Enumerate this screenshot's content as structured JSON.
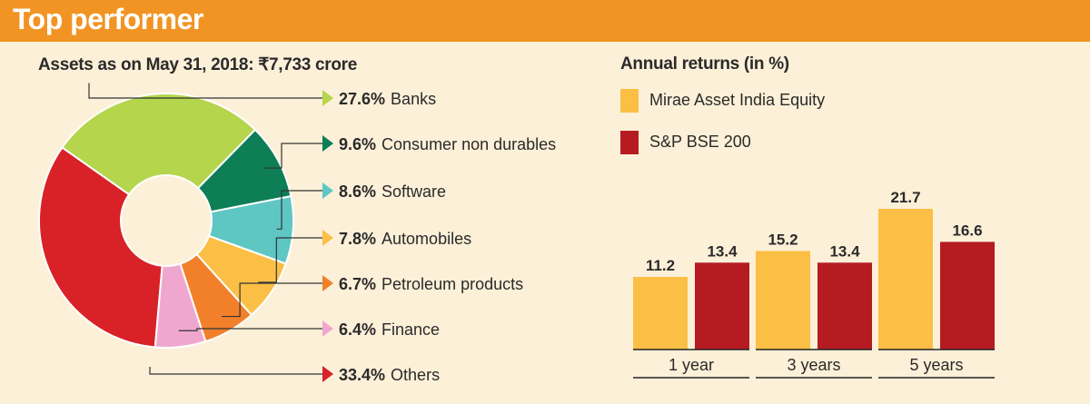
{
  "header": {
    "title": "Top performer"
  },
  "colors": {
    "header_bg": "#f19423",
    "page_bg": "#fdf0d8",
    "fund": "#fbbf45",
    "index": "#b61b22"
  },
  "chart_data": [
    {
      "type": "pie",
      "title": "Assets as on May 31, 2018: ₹7,733 crore",
      "slices": [
        {
          "label": "27.6% Banks",
          "pct_text": "27.6%",
          "name": "Banks",
          "value": 27.6,
          "color": "#b5d54d"
        },
        {
          "label": "9.6% Consumer non durables",
          "pct_text": "9.6%",
          "name": "Consumer non durables",
          "value": 9.6,
          "color": "#0e7e57"
        },
        {
          "label": "8.6% Software",
          "pct_text": "8.6%",
          "name": "Software",
          "value": 8.6,
          "color": "#5ec7c4"
        },
        {
          "label": "7.8% Automobiles",
          "pct_text": "7.8%",
          "name": "Automobiles",
          "value": 7.8,
          "color": "#fbbf45"
        },
        {
          "label": "6.7% Petroleum products",
          "pct_text": "6.7%",
          "name": "Petroleum products",
          "value": 6.7,
          "color": "#f2802a"
        },
        {
          "label": "6.4% Finance",
          "pct_text": "6.4%",
          "name": "Finance",
          "value": 6.4,
          "color": "#f0a7cf"
        },
        {
          "label": "33.4% Others",
          "pct_text": "33.4%",
          "name": "Others",
          "value": 33.4,
          "color": "#d92128"
        }
      ]
    },
    {
      "type": "bar",
      "title": "Annual returns (in %)",
      "categories": [
        "1 year",
        "3 years",
        "5 years"
      ],
      "series": [
        {
          "name": "Mirae Asset India Equity",
          "values": [
            11.2,
            15.2,
            21.7
          ],
          "labels": [
            "11.2",
            "15.2",
            "21.7"
          ],
          "color": "#fbbf45"
        },
        {
          "name": "S&P BSE 200",
          "values": [
            13.4,
            13.4,
            16.6
          ],
          "labels": [
            "13.4",
            "13.4",
            "16.6"
          ],
          "color": "#b61b22"
        }
      ],
      "ylim": [
        0,
        21.7
      ],
      "grid": false,
      "legend": "top-left"
    }
  ]
}
